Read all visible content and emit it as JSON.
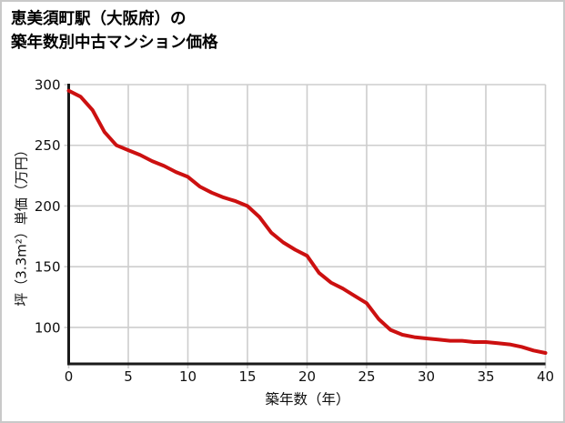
{
  "title": {
    "line1": "恵美須町駅（大阪府）の",
    "line2": "築年数別中古マンション価格"
  },
  "chart_data": {
    "type": "line",
    "title": "恵美須町駅（大阪府）の築年数別中古マンション価格",
    "xlabel": "築年数（年）",
    "ylabel": "坪（3.3m²）単価（万円）",
    "x": [
      0,
      1,
      2,
      3,
      4,
      5,
      6,
      7,
      8,
      9,
      10,
      11,
      12,
      13,
      14,
      15,
      16,
      17,
      18,
      19,
      20,
      21,
      22,
      23,
      24,
      25,
      26,
      27,
      28,
      29,
      30,
      31,
      32,
      33,
      34,
      35,
      36,
      37,
      38,
      39,
      40
    ],
    "values": [
      295,
      290,
      279,
      261,
      250,
      246,
      242,
      237,
      233,
      228,
      224,
      216,
      211,
      207,
      204,
      200,
      191,
      178,
      170,
      164,
      159,
      145,
      137,
      132,
      126,
      120,
      107,
      98,
      94,
      92,
      91,
      90,
      89,
      89,
      88,
      88,
      87,
      86,
      84,
      81,
      79
    ],
    "x_ticks": [
      0,
      5,
      10,
      15,
      20,
      25,
      30,
      35,
      40
    ],
    "y_ticks": [
      100,
      150,
      200,
      250,
      300
    ],
    "xlim": [
      0,
      40
    ],
    "ylim": [
      70,
      300
    ],
    "grid": true,
    "legend": "none",
    "line_color": "#cc1010",
    "grid_color": "#cdcdcd",
    "axis_color": "#1a1a1a"
  }
}
